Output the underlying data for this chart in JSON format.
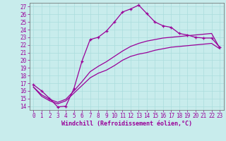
{
  "xlabel": "Windchill (Refroidissement éolien,°C)",
  "bg_color": "#c8ecec",
  "line_color": "#990099",
  "grid_color": "#aadddd",
  "xlim": [
    -0.5,
    23.5
  ],
  "ylim": [
    13.5,
    27.5
  ],
  "xticks": [
    0,
    1,
    2,
    3,
    4,
    5,
    6,
    7,
    8,
    9,
    10,
    11,
    12,
    13,
    14,
    15,
    16,
    17,
    18,
    19,
    20,
    21,
    22,
    23
  ],
  "yticks": [
    14,
    15,
    16,
    17,
    18,
    19,
    20,
    21,
    22,
    23,
    24,
    25,
    26,
    27
  ],
  "line1_x": [
    0,
    1,
    2,
    3,
    4,
    5,
    6,
    7,
    8,
    9,
    10,
    11,
    12,
    13,
    14,
    15,
    16,
    17,
    18,
    19,
    20,
    21,
    22,
    23
  ],
  "line1_y": [
    16.8,
    16.0,
    15.0,
    13.9,
    14.0,
    16.3,
    19.9,
    22.7,
    23.0,
    23.8,
    25.0,
    26.3,
    26.7,
    27.2,
    26.1,
    25.0,
    24.5,
    24.3,
    23.5,
    23.3,
    23.0,
    22.9,
    22.9,
    21.7
  ],
  "line2_x": [
    0,
    1,
    2,
    3,
    4,
    5,
    6,
    7,
    8,
    9,
    10,
    11,
    12,
    13,
    14,
    15,
    16,
    17,
    18,
    19,
    20,
    21,
    22,
    23
  ],
  "line2_y": [
    16.5,
    15.5,
    14.9,
    14.5,
    14.9,
    16.0,
    17.2,
    18.5,
    19.2,
    19.8,
    20.5,
    21.2,
    21.8,
    22.2,
    22.5,
    22.7,
    22.9,
    23.0,
    23.1,
    23.2,
    23.3,
    23.4,
    23.5,
    21.6
  ],
  "line3_x": [
    0,
    1,
    2,
    3,
    4,
    5,
    6,
    7,
    8,
    9,
    10,
    11,
    12,
    13,
    14,
    15,
    16,
    17,
    18,
    19,
    20,
    21,
    22,
    23
  ],
  "line3_y": [
    16.5,
    15.3,
    14.7,
    14.3,
    14.7,
    15.7,
    16.7,
    17.7,
    18.3,
    18.7,
    19.3,
    20.0,
    20.5,
    20.8,
    21.0,
    21.3,
    21.5,
    21.7,
    21.8,
    21.9,
    22.0,
    22.1,
    22.2,
    21.5
  ],
  "xlabel_fontsize": 6,
  "tick_fontsize": 5.5,
  "lw": 0.9,
  "marker_size": 3.5
}
